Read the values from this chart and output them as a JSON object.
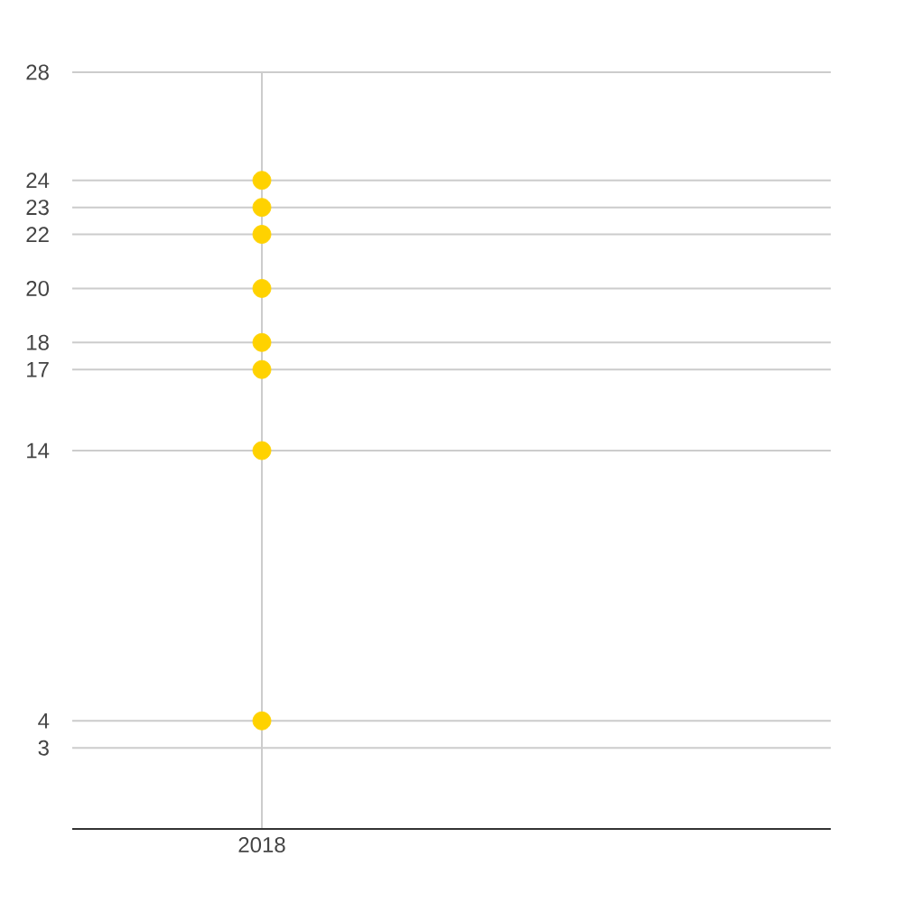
{
  "chart_data": {
    "type": "scatter",
    "categories": [
      "2018",
      null
    ],
    "series": [
      {
        "color": "#ffd200",
        "values": [
          24,
          null
        ]
      },
      {
        "color": "#ffd200",
        "values": [
          23,
          null
        ]
      },
      {
        "color": "#ffd200",
        "values": [
          22,
          null
        ]
      },
      {
        "color": "#ffd200",
        "values": [
          20,
          null
        ]
      },
      {
        "color": "#ffd200",
        "values": [
          18,
          null
        ]
      },
      {
        "color": "#ffd200",
        "values": [
          17,
          null
        ]
      },
      {
        "color": "#ffd200",
        "values": [
          14,
          null
        ]
      },
      {
        "color": "#ffd200",
        "values": [
          4,
          null
        ]
      }
    ],
    "ylim": [
      0,
      28
    ],
    "yticks": [
      3,
      4,
      14,
      17,
      18,
      20,
      22,
      23,
      24,
      28
    ],
    "grid": true,
    "marker": "circle"
  }
}
